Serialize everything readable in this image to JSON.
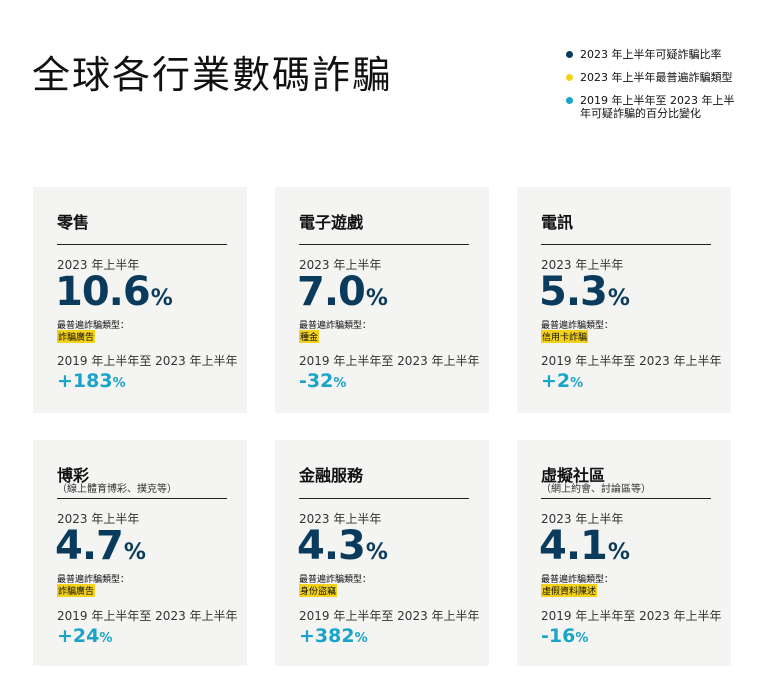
{
  "title": "全球各行業數碼詐騙",
  "legend": [
    {
      "text": "2023 年上半年可疑詐騙比率",
      "color": "#0a3b5c"
    },
    {
      "text": "2023 年上半年最普遍詐騙類型",
      "color": "#f5d21a"
    },
    {
      "text": "2019 年上半年至 2023 年上半年可疑詐騙的百分比變化",
      "color": "#1aa5c8"
    }
  ],
  "common": {
    "period": "2023 年上半年",
    "type_label": "最普遍詐騙類型：",
    "range": "2019 年上半年至 2023 年上半年",
    "pct": "%"
  },
  "cards": [
    {
      "name": "零售",
      "sub": "",
      "rate": "10.6",
      "type": "詐騙廣告",
      "change": "+183"
    },
    {
      "name": "電子遊戲",
      "sub": "",
      "rate": "7.0",
      "type": "種金",
      "change": "-32"
    },
    {
      "name": "電訊",
      "sub": "",
      "rate": "5.3",
      "type": "信用卡詐騙",
      "change": "+2"
    },
    {
      "name": "博彩",
      "sub": "（線上體育博彩、撲克等）",
      "rate": "4.7",
      "type": "詐騙廣告",
      "change": "+24"
    },
    {
      "name": "金融服務",
      "sub": "",
      "rate": "4.3",
      "type": "身份盜竊",
      "change": "+382"
    },
    {
      "name": "虛擬社區",
      "sub": "（網上約會、討論區等）",
      "rate": "4.1",
      "type": "虛假資料陳述",
      "change": "-16"
    }
  ]
}
